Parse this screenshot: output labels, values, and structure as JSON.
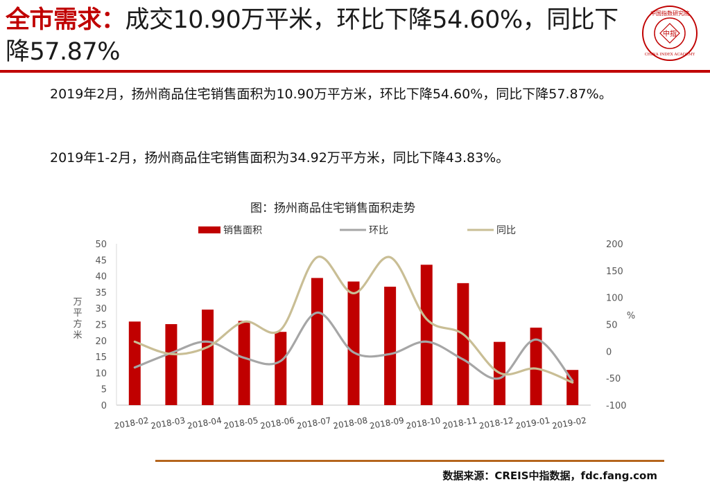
{
  "header": {
    "title_highlight": "全市需求：",
    "title_rest": "成交10.90万平米，环比下降54.60%，同比下降57.87%"
  },
  "logo": {
    "top_text": "中国指数研究院",
    "center_text": "中指",
    "bottom_text": "CHINA INDEX ACADEMY"
  },
  "body": {
    "para1": "2019年2月，扬州商品住宅销售面积为10.90万平方米，环比下降54.60%，同比下降57.87%。",
    "para2": "2019年1-2月，扬州商品住宅销售面积为34.92万平方米，同比下降43.83%。"
  },
  "source": "数据来源：CREIS中指数据，fdc.fang.com",
  "chart_data": {
    "type": "bar",
    "title": "图：扬州商品住宅销售面积走势",
    "categories": [
      "2018-02",
      "2018-03",
      "2018-04",
      "2018-05",
      "2018-06",
      "2018-07",
      "2018-08",
      "2018-09",
      "2018-10",
      "2018-11",
      "2018-12",
      "2019-01",
      "2019-02"
    ],
    "ylabel": "万平方米",
    "y2label": "%",
    "ylim": [
      0,
      50
    ],
    "y2lim": [
      -100,
      200
    ],
    "yticks": [
      "0",
      "5",
      "10",
      "15",
      "20",
      "25",
      "30",
      "35",
      "40",
      "45",
      "50"
    ],
    "y2ticks": [
      "-100",
      "-50",
      "0",
      "50",
      "100",
      "150",
      "200"
    ],
    "legend_position": "top",
    "series": [
      {
        "name": "销售面积",
        "kind": "bar",
        "axis": "left",
        "color": "#c00000",
        "values": [
          25.9,
          25.1,
          29.6,
          26.1,
          22.7,
          39.4,
          38.3,
          36.7,
          43.5,
          37.8,
          19.6,
          24.0,
          10.9
        ]
      },
      {
        "name": "环比",
        "kind": "line",
        "axis": "right",
        "color": "#a6a6a6",
        "values": [
          -30,
          -3,
          18,
          -12,
          -18,
          72,
          -2,
          -5,
          18,
          -15,
          -50,
          22,
          -54.6
        ]
      },
      {
        "name": "同比",
        "kind": "line",
        "axis": "right",
        "color": "#c9be95",
        "values": [
          18,
          -5,
          8,
          55,
          40,
          175,
          108,
          175,
          60,
          32,
          -40,
          -32,
          -57.87
        ]
      }
    ]
  }
}
